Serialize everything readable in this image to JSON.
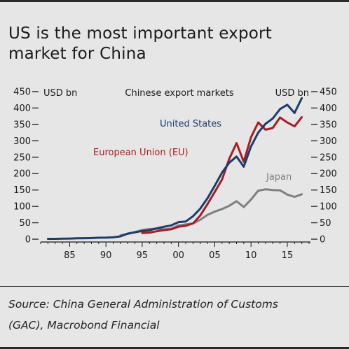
{
  "page": {
    "title_lines": [
      "US is the most important export",
      "market for China"
    ],
    "source_lines": [
      "Source: China General Administration of Customs",
      "(GAC), Macrobond Financial"
    ]
  },
  "chart_data": {
    "type": "line",
    "title": "Chinese export markets",
    "ylabel_left": "USD bn",
    "ylabel_right": "USD bn",
    "ylim": [
      0,
      450
    ],
    "yticks": [
      0,
      50,
      100,
      150,
      200,
      250,
      300,
      350,
      400,
      450
    ],
    "xlim": [
      1981,
      2018
    ],
    "xticks": [
      1985,
      1990,
      1995,
      2000,
      2005,
      2010,
      2015
    ],
    "xtick_labels": [
      "85",
      "90",
      "95",
      "00",
      "05",
      "10",
      "15"
    ],
    "grid": false,
    "series": [
      {
        "name": "United States",
        "color": "#1b3d6b",
        "x": [
          1982,
          1983,
          1984,
          1985,
          1986,
          1987,
          1988,
          1989,
          1990,
          1991,
          1992,
          1993,
          1994,
          1995,
          1996,
          1997,
          1998,
          1999,
          2000,
          2001,
          2002,
          2003,
          2004,
          2005,
          2006,
          2007,
          2008,
          2009,
          2010,
          2011,
          2012,
          2013,
          2014,
          2015,
          2016,
          2017
        ],
        "values": [
          1,
          1,
          1.5,
          2,
          2.5,
          3,
          3.5,
          4.5,
          5,
          6,
          8.5,
          17,
          21,
          25,
          27,
          33,
          38,
          42,
          52,
          54,
          70,
          93,
          125,
          163,
          203,
          233,
          252,
          221,
          283,
          325,
          352,
          368,
          397,
          410,
          385,
          430
        ]
      },
      {
        "name": "European Union (EU)",
        "color": "#a81d23",
        "x": [
          1995,
          1996,
          1997,
          1998,
          1999,
          2000,
          2001,
          2002,
          2003,
          2004,
          2005,
          2006,
          2007,
          2008,
          2009,
          2010,
          2011,
          2012,
          2013,
          2014,
          2015,
          2016,
          2017
        ],
        "values": [
          19,
          20,
          24,
          28,
          30,
          38,
          41,
          48,
          72,
          107,
          144,
          182,
          245,
          293,
          236,
          311,
          356,
          334,
          339,
          371,
          356,
          344,
          372
        ]
      },
      {
        "name": "Japan",
        "color": "#7f7f7f",
        "x": [
          1992,
          1993,
          1994,
          1995,
          1996,
          1997,
          1998,
          1999,
          2000,
          2001,
          2002,
          2003,
          2004,
          2005,
          2006,
          2007,
          2008,
          2009,
          2010,
          2011,
          2012,
          2013,
          2014,
          2015,
          2016,
          2017
        ],
        "values": [
          12,
          16,
          22,
          28,
          31,
          32,
          30,
          32,
          42,
          45,
          48,
          59,
          74,
          84,
          92,
          102,
          116,
          98,
          121,
          148,
          152,
          150,
          149,
          136,
          129,
          137
        ]
      }
    ]
  }
}
